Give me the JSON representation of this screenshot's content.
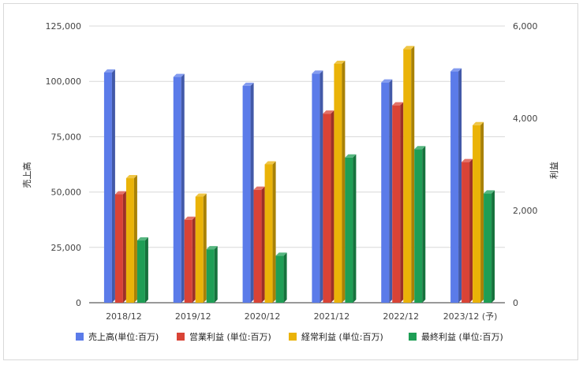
{
  "chart_data": {
    "type": "bar",
    "categories": [
      "2018/12",
      "2019/12",
      "2020/12",
      "2021/12",
      "2022/12",
      "2023/12 (予)"
    ],
    "ylabel_left": "売上高",
    "ylabel_right": "利益",
    "y_left_ticks": [
      "0",
      "25,000",
      "50,000",
      "75,000",
      "100,000",
      "125,000"
    ],
    "y_right_ticks": [
      "0",
      "2,000",
      "4,000",
      "6,000"
    ],
    "ylim_left": [
      0,
      125000
    ],
    "ylim_right": [
      0,
      6000
    ],
    "grid": true,
    "legend_position": "bottom",
    "series": [
      {
        "name": "売上高(単位:百万)",
        "axis": "left",
        "color": "#5b7be9",
        "values": [
          104000,
          102000,
          98000,
          103500,
          99500,
          104500
        ]
      },
      {
        "name": "営業利益 (単位:百万)",
        "axis": "right",
        "color": "#d94336",
        "values": [
          2350,
          1800,
          2450,
          4100,
          4280,
          3050
        ]
      },
      {
        "name": "経常利益 (単位:百万)",
        "axis": "right",
        "color": "#eab308",
        "values": [
          2700,
          2300,
          3000,
          5180,
          5500,
          3850
        ]
      },
      {
        "name": "最終利益 (単位:百万)",
        "axis": "right",
        "color": "#1e9e55",
        "values": [
          1350,
          1160,
          1020,
          3150,
          3330,
          2370
        ]
      }
    ]
  }
}
